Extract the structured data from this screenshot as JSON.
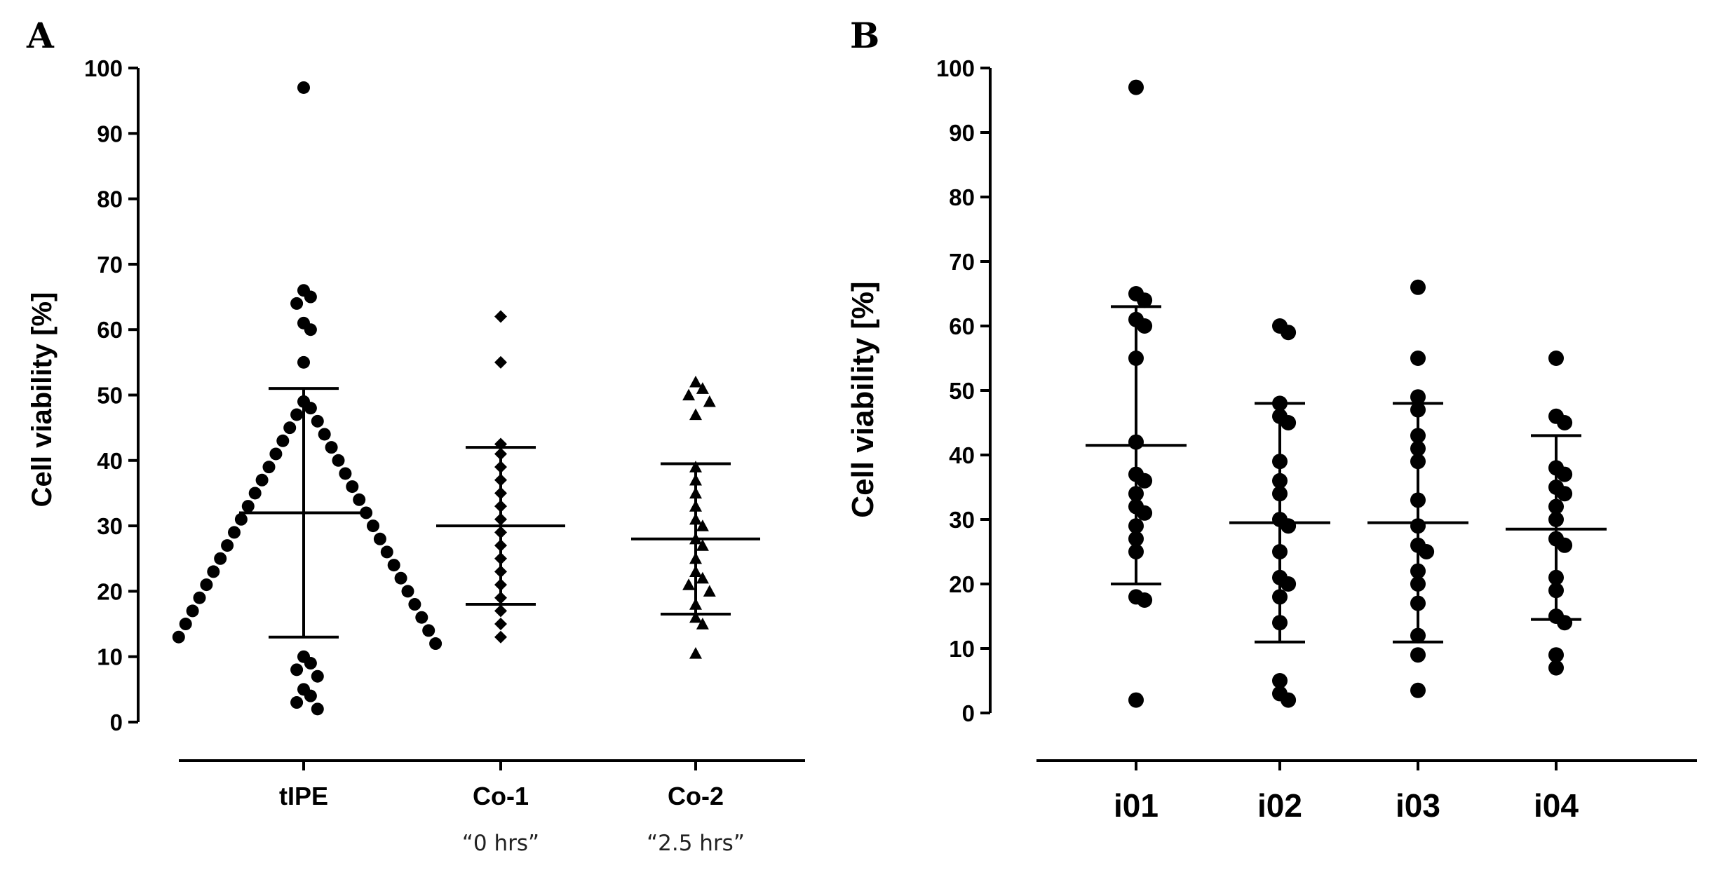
{
  "chart_data": [
    {
      "type": "scatter",
      "panel_label": "A",
      "ylabel": "Cell viability [%]",
      "ylim": [
        0,
        100
      ],
      "yticks": [
        0,
        10,
        20,
        30,
        40,
        50,
        60,
        70,
        80,
        90,
        100
      ],
      "categories": [
        "tIPE",
        "Co-1",
        "Co-2"
      ],
      "sublabels": [
        "",
        "“0 hrs”",
        "“2.5 hrs”"
      ],
      "marker": [
        "circle",
        "diamond",
        "triangle"
      ],
      "series": [
        {
          "name": "tIPE",
          "mean": 32,
          "sd_low": 13,
          "sd_high": 51,
          "values": [
            97,
            66,
            65,
            64,
            61,
            60,
            55,
            49,
            48,
            47,
            46,
            45,
            44,
            43,
            42,
            41,
            40,
            39,
            38,
            37,
            36,
            35,
            34,
            33,
            32,
            31,
            30,
            29,
            28,
            27,
            26,
            25,
            24,
            23,
            22,
            21,
            20,
            19,
            18,
            17,
            16,
            15,
            14,
            13,
            12,
            10,
            9,
            8,
            7,
            5,
            4,
            3,
            2
          ]
        },
        {
          "name": "Co-1",
          "mean": 30,
          "sd_low": 18,
          "sd_high": 42,
          "values": [
            62,
            55,
            42.5,
            41,
            39,
            37,
            35,
            33,
            31,
            29,
            27,
            25,
            23,
            21,
            19,
            17,
            15,
            13
          ]
        },
        {
          "name": "Co-2",
          "mean": 28,
          "sd_low": 16.5,
          "sd_high": 39.5,
          "values": [
            52,
            51,
            50,
            49,
            47,
            39,
            37,
            35,
            33,
            31,
            30,
            28,
            27,
            25,
            23,
            22,
            21,
            20,
            18,
            16,
            15,
            10.5
          ]
        }
      ]
    },
    {
      "type": "scatter",
      "panel_label": "B",
      "ylabel": "Cell viability [%]",
      "ylim": [
        0,
        100
      ],
      "yticks": [
        0,
        10,
        20,
        30,
        40,
        50,
        60,
        70,
        80,
        90,
        100
      ],
      "categories": [
        "i01",
        "i02",
        "i03",
        "i04"
      ],
      "marker": [
        "circle",
        "circle",
        "circle",
        "circle"
      ],
      "series": [
        {
          "name": "i01",
          "mean": 41.5,
          "sd_low": 20,
          "sd_high": 63,
          "values": [
            97,
            65,
            64,
            61,
            60,
            55,
            42,
            37,
            36,
            34,
            32,
            31,
            29,
            27,
            25,
            18,
            17.5,
            2
          ]
        },
        {
          "name": "i02",
          "mean": 29.5,
          "sd_low": 11,
          "sd_high": 48,
          "values": [
            60,
            59,
            48,
            46,
            45,
            39,
            36,
            34,
            30,
            29,
            25,
            21,
            20,
            18,
            14,
            5,
            3,
            2
          ]
        },
        {
          "name": "i03",
          "mean": 29.5,
          "sd_low": 11,
          "sd_high": 48,
          "values": [
            66,
            55,
            49,
            47,
            43,
            41,
            39,
            33,
            29,
            26,
            25,
            22,
            20,
            17,
            12,
            9,
            3.5
          ]
        },
        {
          "name": "i04",
          "mean": 28.5,
          "sd_low": 14.5,
          "sd_high": 43,
          "values": [
            55,
            46,
            45,
            38,
            37,
            35,
            34,
            32,
            30,
            27,
            26,
            21,
            19,
            15,
            14,
            9,
            7
          ]
        }
      ]
    }
  ]
}
